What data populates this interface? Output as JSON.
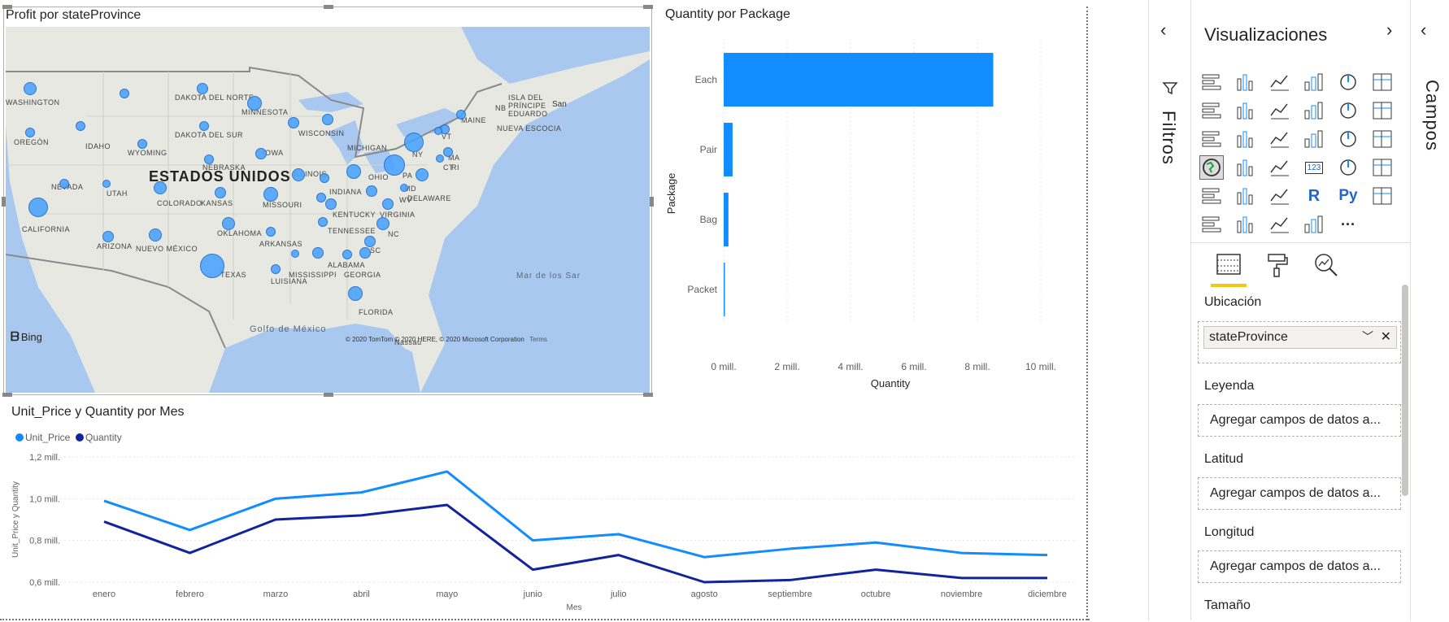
{
  "map": {
    "title": "Profit por stateProvince",
    "country_label": "ESTADOS UNIDOS",
    "logo_text": "Bing",
    "copyright": "© 2020 TomTom © 2020 HERE, © 2020 Microsoft Corporation",
    "terms": "Terms",
    "water_labels": [
      "Golfo de México",
      "Mar de los Sar",
      "San"
    ],
    "region_labels": [
      "WASHINGTON",
      "OREGÓN",
      "IDAHO",
      "WYOMING",
      "NEVADA",
      "UTAH",
      "CALIFORNIA",
      "ARIZONA",
      "NUEVO MÉXICO",
      "COLORADO",
      "DAKOTA DEL NORTE",
      "DAKOTA DEL SUR",
      "NEBRASKA",
      "KANSAS",
      "OKLAHOMA",
      "TEXAS",
      "MINNESOTA",
      "IOWA",
      "MISSOURI",
      "ARKANSAS",
      "LUISIANA",
      "WISCONSIN",
      "ILLINOIS",
      "MICHIGAN",
      "INDIANA",
      "OHIO",
      "KENTUCKY",
      "TENNESSEE",
      "MISSISSIPPI",
      "ALABAMA",
      "GEORGIA",
      "FLORIDA",
      "VIRGINIA",
      "NC",
      "SC",
      "PA",
      "NY",
      "MD",
      "DELAWARE",
      "WV",
      "VT",
      "MA",
      "RI",
      "CT",
      "MAINE",
      "NB",
      "ISLA DEL PRÍNCIPE EDUARDO",
      "NUEVA ESCOCIA",
      "Nassau"
    ],
    "colors": {
      "bubble": "#4aa3ff",
      "bubble_stroke": "#1a66cc",
      "water": "#a9c8f0",
      "land": "#e6e8e1"
    }
  },
  "bar_chart": {
    "title": "Quantity por Package",
    "chart_data": {
      "type": "bar",
      "orientation": "horizontal",
      "categories": [
        "Each",
        "Pair",
        "Bag",
        "Packet"
      ],
      "values": [
        8.5,
        0.28,
        0.15,
        0.03
      ],
      "xlabel": "Quantity",
      "ylabel": "Package",
      "xlim": [
        0,
        10
      ],
      "ticks": [
        "0 mill.",
        "2 mill.",
        "4 mill.",
        "6 mill.",
        "8 mill.",
        "10 mill."
      ],
      "grid": true,
      "color": "#118dff"
    }
  },
  "line_chart": {
    "title": "Unit_Price y Quantity por Mes",
    "chart_data": {
      "type": "line",
      "categories": [
        "enero",
        "febrero",
        "marzo",
        "abril",
        "mayo",
        "junio",
        "julio",
        "agosto",
        "septiembre",
        "octubre",
        "noviembre",
        "diciembre"
      ],
      "series": [
        {
          "name": "Unit_Price",
          "color": "#118dff",
          "values": [
            0.99,
            0.85,
            1.0,
            1.03,
            1.13,
            0.8,
            0.83,
            0.72,
            0.76,
            0.79,
            0.74,
            0.73
          ]
        },
        {
          "name": "Quantity",
          "color": "#12239e",
          "values": [
            0.89,
            0.74,
            0.9,
            0.92,
            0.97,
            0.66,
            0.73,
            0.6,
            0.61,
            0.66,
            0.62,
            0.62
          ]
        }
      ],
      "xlabel": "Mes",
      "ylabel": "Unit_Price y Quantity",
      "ylim": [
        0.6,
        1.2
      ],
      "ticks": [
        "0,6 mill.",
        "0,8 mill.",
        "1,0 mill.",
        "1,2 mill."
      ],
      "legend": "top-left",
      "grid": true
    }
  },
  "filters": {
    "label": "Filtros"
  },
  "visualizations": {
    "title": "Visualizaciones",
    "more": "···",
    "r_label": "R",
    "py_label": "Py",
    "card_label": "123",
    "wells": [
      {
        "label": "Ubicación",
        "value": "stateProvince"
      },
      {
        "label": "Leyenda",
        "placeholder": "Agregar campos de datos a..."
      },
      {
        "label": "Latitud",
        "placeholder": "Agregar campos de datos a..."
      },
      {
        "label": "Longitud",
        "placeholder": "Agregar campos de datos a..."
      },
      {
        "label": "Tamaño"
      }
    ],
    "accent": "#f2c811"
  },
  "fields": {
    "label": "Campos"
  }
}
